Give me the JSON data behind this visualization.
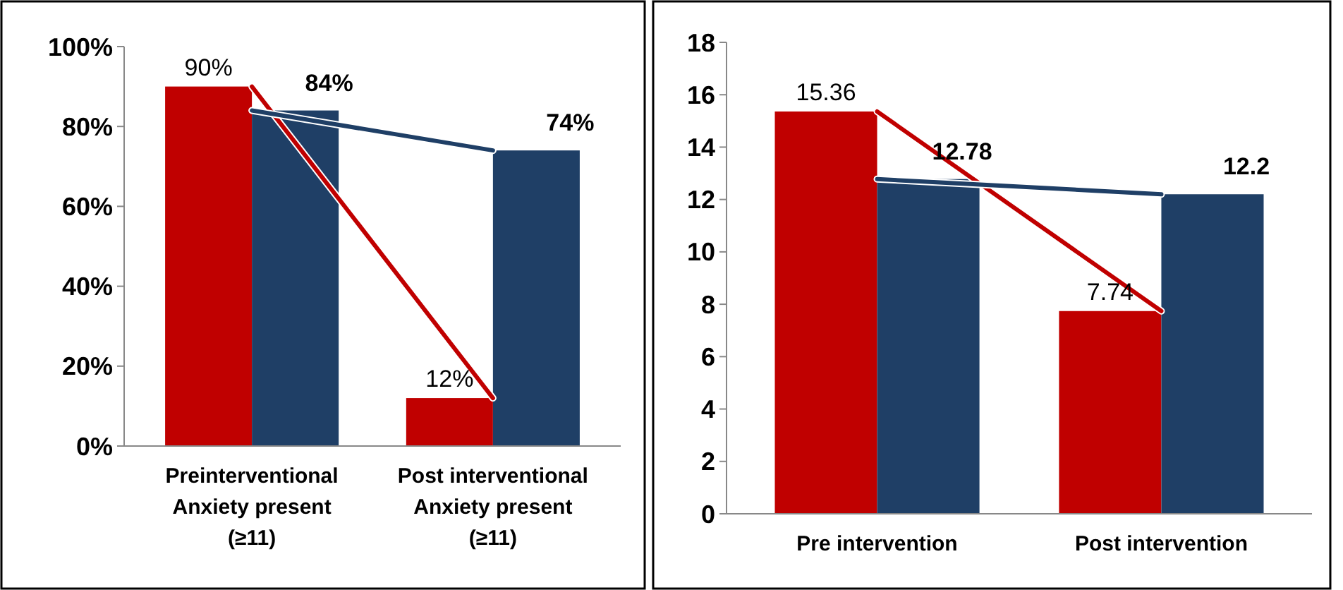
{
  "chart_data": [
    {
      "type": "bar",
      "categories": [
        "Preinterventional\nAnxiety present\n(≥11)",
        "Post interventional\nAnxiety present\n(≥11)"
      ],
      "ylim": [
        0,
        100
      ],
      "yticks": [
        {
          "value": 0,
          "label": "0%"
        },
        {
          "value": 20,
          "label": "20%"
        },
        {
          "value": 40,
          "label": "40%"
        },
        {
          "value": 60,
          "label": "60%"
        },
        {
          "value": 80,
          "label": "80%"
        },
        {
          "value": 100,
          "label": "100%"
        }
      ],
      "series": [
        {
          "color": "#c00000",
          "values": [
            90,
            12
          ],
          "value_labels": [
            "90%",
            "12%"
          ]
        },
        {
          "color": "#1f3f66",
          "values": [
            84,
            74
          ],
          "value_labels": [
            "84%",
            "74%"
          ]
        },
        {
          "type": "line",
          "color": "#c00000",
          "values": [
            90,
            12
          ]
        },
        {
          "type": "line",
          "color": "#1f3f66",
          "values": [
            84,
            74
          ]
        }
      ]
    },
    {
      "type": "bar",
      "categories": [
        "Pre intervention",
        "Post intervention"
      ],
      "ylim": [
        0,
        18
      ],
      "yticks": [
        0,
        2,
        4,
        6,
        8,
        10,
        12,
        14,
        16,
        18
      ],
      "series": [
        {
          "color": "#c00000",
          "values": [
            15.36,
            7.74
          ],
          "value_labels": [
            "15.36",
            "7.74"
          ]
        },
        {
          "color": "#1f3f66",
          "values": [
            12.78,
            12.2
          ],
          "value_labels": [
            "12.78",
            "12.2"
          ]
        },
        {
          "type": "line",
          "color": "#c00000",
          "values": [
            15.36,
            7.74
          ]
        },
        {
          "type": "line",
          "color": "#1f3f66",
          "values": [
            12.78,
            12.2
          ]
        }
      ]
    }
  ]
}
